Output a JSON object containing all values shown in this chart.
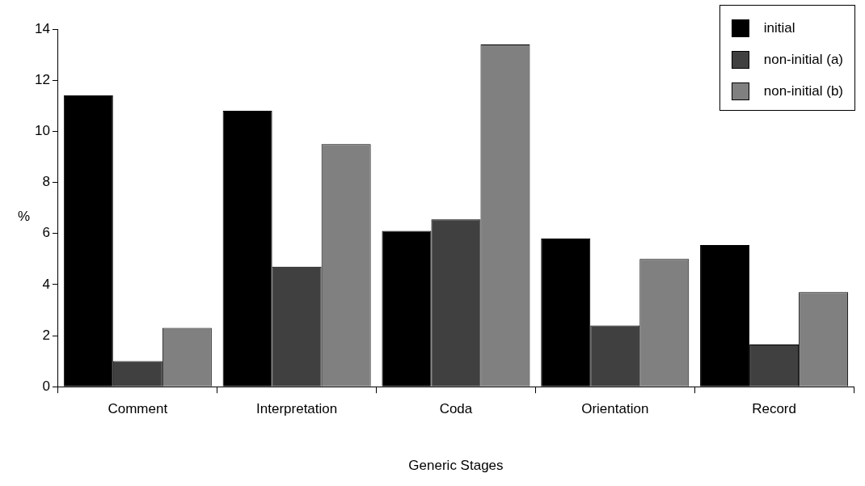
{
  "chart_data": {
    "type": "bar",
    "xlabel": "Generic Stages",
    "ylabel": "%",
    "categories": [
      "Comment",
      "Interpretation",
      "Coda",
      "Orientation",
      "Record"
    ],
    "series": [
      {
        "name": "initial",
        "color": "#000000",
        "values": [
          11.4,
          10.8,
          6.1,
          5.8,
          5.55
        ]
      },
      {
        "name": "non-initial (a)",
        "color": "#404040",
        "values": [
          1.0,
          4.7,
          6.55,
          2.4,
          1.65
        ]
      },
      {
        "name": "non-initial (b)",
        "color": "#808080",
        "values": [
          2.3,
          9.5,
          13.4,
          5.0,
          3.7
        ]
      }
    ],
    "ylim": [
      0,
      14
    ],
    "yticks": [
      0,
      2,
      4,
      6,
      8,
      10,
      12,
      14
    ],
    "grid": false,
    "legend": "top right"
  }
}
